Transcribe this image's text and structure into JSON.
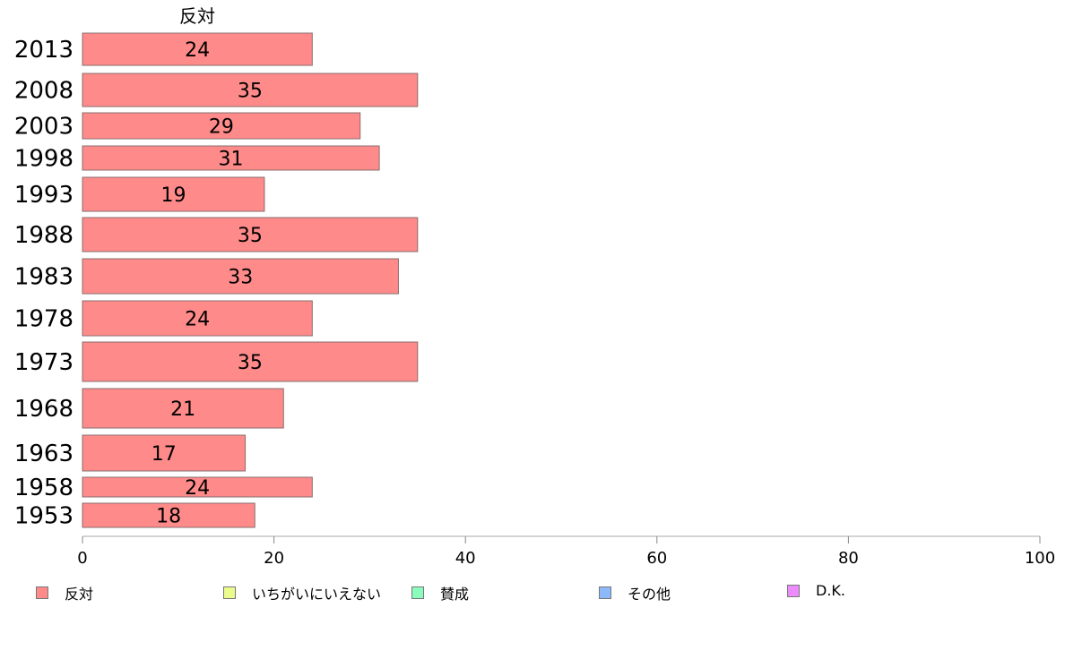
{
  "chart_data": {
    "type": "bar",
    "orientation": "horizontal",
    "series_title": "反対",
    "categories": [
      "2013",
      "2008",
      "2003",
      "1998",
      "1993",
      "1988",
      "1983",
      "1978",
      "1973",
      "1968",
      "1963",
      "1958",
      "1953"
    ],
    "series": [
      {
        "name": "反対",
        "color": "#ff8a8a",
        "values": [
          24,
          35,
          29,
          31,
          19,
          35,
          33,
          24,
          35,
          21,
          17,
          24,
          18
        ],
        "labels": [
          "24",
          "35",
          "29",
          "31",
          "19",
          "35",
          "33",
          "24",
          "35",
          "21",
          "17",
          "24",
          "18"
        ]
      }
    ],
    "xlim": [
      0,
      100
    ],
    "x_ticks": [
      "0",
      "20",
      "40",
      "60",
      "80",
      "100"
    ],
    "grid": false,
    "legend_position": "bottom"
  },
  "legend": [
    {
      "label": "反対",
      "color": "#ff8a8a"
    },
    {
      "label": "いちがいにいえない",
      "color": "#ecfc8c"
    },
    {
      "label": "賛成",
      "color": "#8cfcbc"
    },
    {
      "label": "その他",
      "color": "#8cb8fc"
    },
    {
      "label": "D.K.",
      "color": "#ec8cfc"
    }
  ]
}
